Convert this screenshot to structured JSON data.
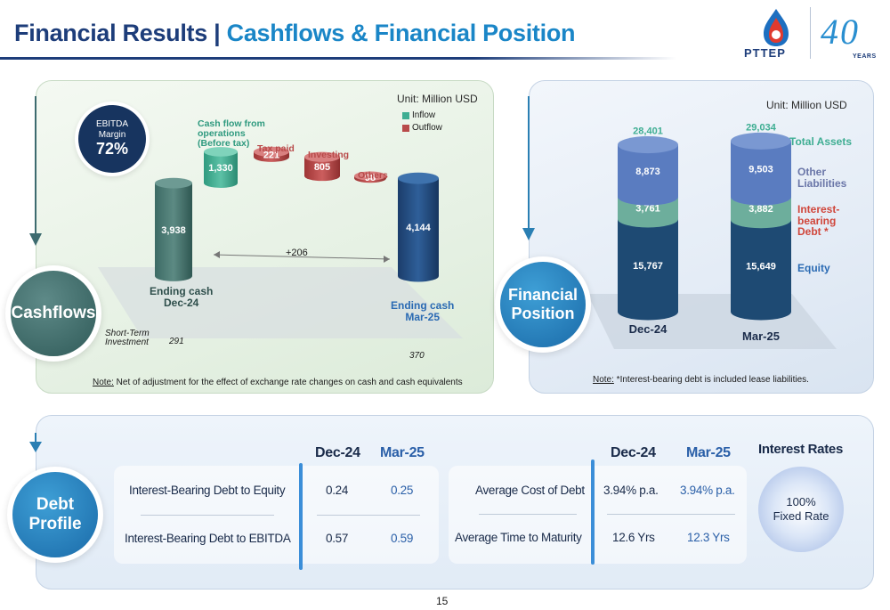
{
  "header": {
    "title_main": "Financial Results",
    "title_sep": " | ",
    "title_sub": "Cashflows & Financial Position",
    "logo_text": "PTTEP",
    "logo_anniversary": "40",
    "logo_years": "YEARS"
  },
  "cashflows": {
    "section_label": "Cashflows",
    "unit": "Unit: Million USD",
    "legend": [
      {
        "name": "Inflow",
        "color": "#3fae93"
      },
      {
        "name": "Outflow",
        "color": "#b84a4a"
      }
    ],
    "ebitda_label_1": "EBITDA",
    "ebitda_label_2": "Margin",
    "ebitda_value": "72%",
    "note_prefix": "Note:",
    "note_text": "  Net of adjustment for the effect of exchange rate changes on cash and cash equivalents",
    "short_term_1": "Short-Term",
    "short_term_2": "Investment",
    "short_term_dec": "291",
    "short_term_mar": "370",
    "delta_label": "+206",
    "labels": {
      "start_1": "Ending cash",
      "start_2": "Dec-24",
      "cfo_1": "Cash flow from",
      "cfo_2": "operations",
      "cfo_3": "(Before tax)",
      "tax": "Tax paid",
      "investing": "Investing",
      "others": "Others",
      "end_1": "Ending cash",
      "end_2": "Mar-25"
    }
  },
  "chart_data": [
    {
      "type": "bar",
      "subtype": "waterfall",
      "unit": "Million USD",
      "categories": [
        "Ending cash Dec-24",
        "Cash flow from operations (Before tax)",
        "Tax paid",
        "Investing",
        "Others",
        "Ending cash Mar-25"
      ],
      "values": [
        3938,
        1330,
        -221,
        -805,
        -98,
        4144
      ],
      "value_labels": [
        "3,938",
        "1,330",
        "221",
        "805",
        "98",
        "4,144"
      ],
      "kinds": [
        "total",
        "inflow",
        "outflow",
        "outflow",
        "outflow",
        "total"
      ],
      "short_term_investment": {
        "Dec-24": 291,
        "Mar-25": 370
      },
      "change": 206
    },
    {
      "type": "bar",
      "subtype": "stacked",
      "unit": "Million USD",
      "categories": [
        "Dec-24",
        "Mar-25"
      ],
      "totals": [
        28401,
        29034
      ],
      "total_labels": [
        "28,401",
        "29,034"
      ],
      "series": [
        {
          "name": "Equity",
          "values": [
            15767,
            15649
          ],
          "labels": [
            "15,767",
            "15,649"
          ],
          "color": "#1e4a73"
        },
        {
          "name": "Interest-bearing Debt *",
          "values": [
            3761,
            3882
          ],
          "labels": [
            "3,761",
            "3,882"
          ],
          "color": "#6dae9c"
        },
        {
          "name": "Other Liabilities",
          "values": [
            8873,
            9503
          ],
          "labels": [
            "8,873",
            "9,503"
          ],
          "color": "#5a7cc0"
        }
      ]
    }
  ],
  "financial_position": {
    "section_label_1": "Financial",
    "section_label_2": "Position",
    "unit": "Unit: Million USD",
    "total_assets_label": "Total Assets",
    "other_liab_1": "Other",
    "other_liab_2": "Liabilities",
    "ibd_1": "Interest-",
    "ibd_2": "bearing",
    "ibd_3": "Debt *",
    "equity_label": "Equity",
    "note_prefix": "Note:",
    "note_text": " *Interest-bearing debt is included lease liabilities."
  },
  "debt_profile": {
    "section_label_1": "Debt",
    "section_label_2": "Profile",
    "left": {
      "col1": "Dec-24",
      "col2": "Mar-25",
      "rows": [
        {
          "label": "Interest-Bearing Debt to Equity",
          "v1": "0.24",
          "v2": "0.25"
        },
        {
          "label": "Interest-Bearing Debt to EBITDA",
          "v1": "0.57",
          "v2": "0.59"
        }
      ]
    },
    "right": {
      "col1": "Dec-24",
      "col2": "Mar-25",
      "rows": [
        {
          "label": "Average Cost of Debt",
          "v1": "3.94% p.a.",
          "v2": "3.94% p.a."
        },
        {
          "label": "Average Time to Maturity",
          "v1": "12.6 Yrs",
          "v2": "12.3 Yrs"
        }
      ]
    },
    "interest_title": "Interest Rates",
    "interest_line1": "100%",
    "interest_line2": "Fixed Rate"
  },
  "page_number": "15"
}
